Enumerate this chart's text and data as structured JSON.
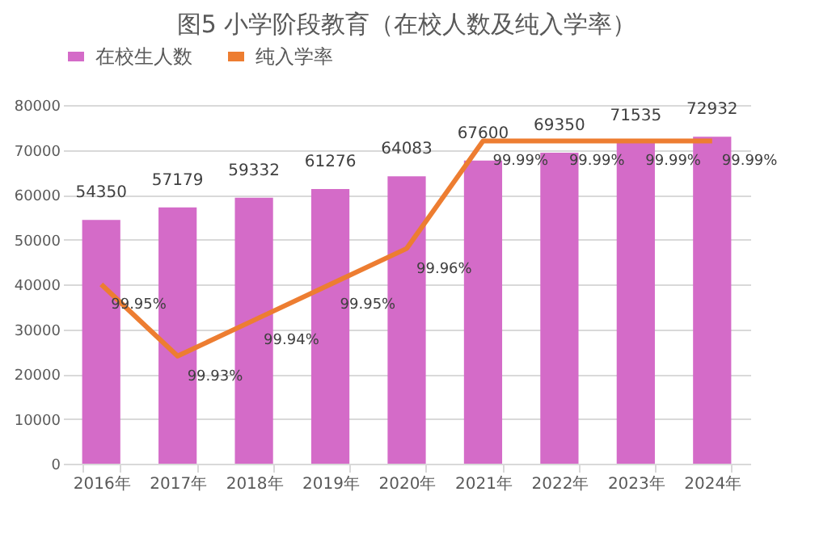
{
  "chart_data": {
    "type": "bar",
    "title": "图5 小学阶段教育（在校人数及纯入学率）",
    "categories": [
      "2016年",
      "2017年",
      "2018年",
      "2019年",
      "2020年",
      "2021年",
      "2022年",
      "2023年",
      "2024年"
    ],
    "series": [
      {
        "name": "在校生人数",
        "color": "#d46bc8",
        "values": [
          54350,
          57179,
          59332,
          61276,
          64083,
          67600,
          69350,
          71535,
          72932
        ],
        "value_labels": [
          "54350",
          "57179",
          "59332",
          "61276",
          "64083",
          "67600",
          "69350",
          "71535",
          "72932"
        ]
      },
      {
        "name": "纯入学率",
        "type": "line",
        "axis": "y2",
        "color": "#ed7d31",
        "values": [
          99.95,
          99.93,
          99.94,
          99.95,
          99.96,
          99.99,
          99.99,
          99.99,
          99.99
        ],
        "value_labels": [
          "99.95%",
          "99.93%",
          "99.94%",
          "99.95%",
          "99.96%",
          "99.99%",
          "99.99%",
          "99.99%",
          "99.99%"
        ]
      }
    ],
    "ylim": [
      0,
      80000
    ],
    "yticks": [
      0,
      10000,
      20000,
      30000,
      40000,
      50000,
      60000,
      70000,
      80000
    ],
    "y2lim": [
      99.9,
      100
    ],
    "grid": "y",
    "legend": "top",
    "marker": "none",
    "line_style": "solid"
  }
}
